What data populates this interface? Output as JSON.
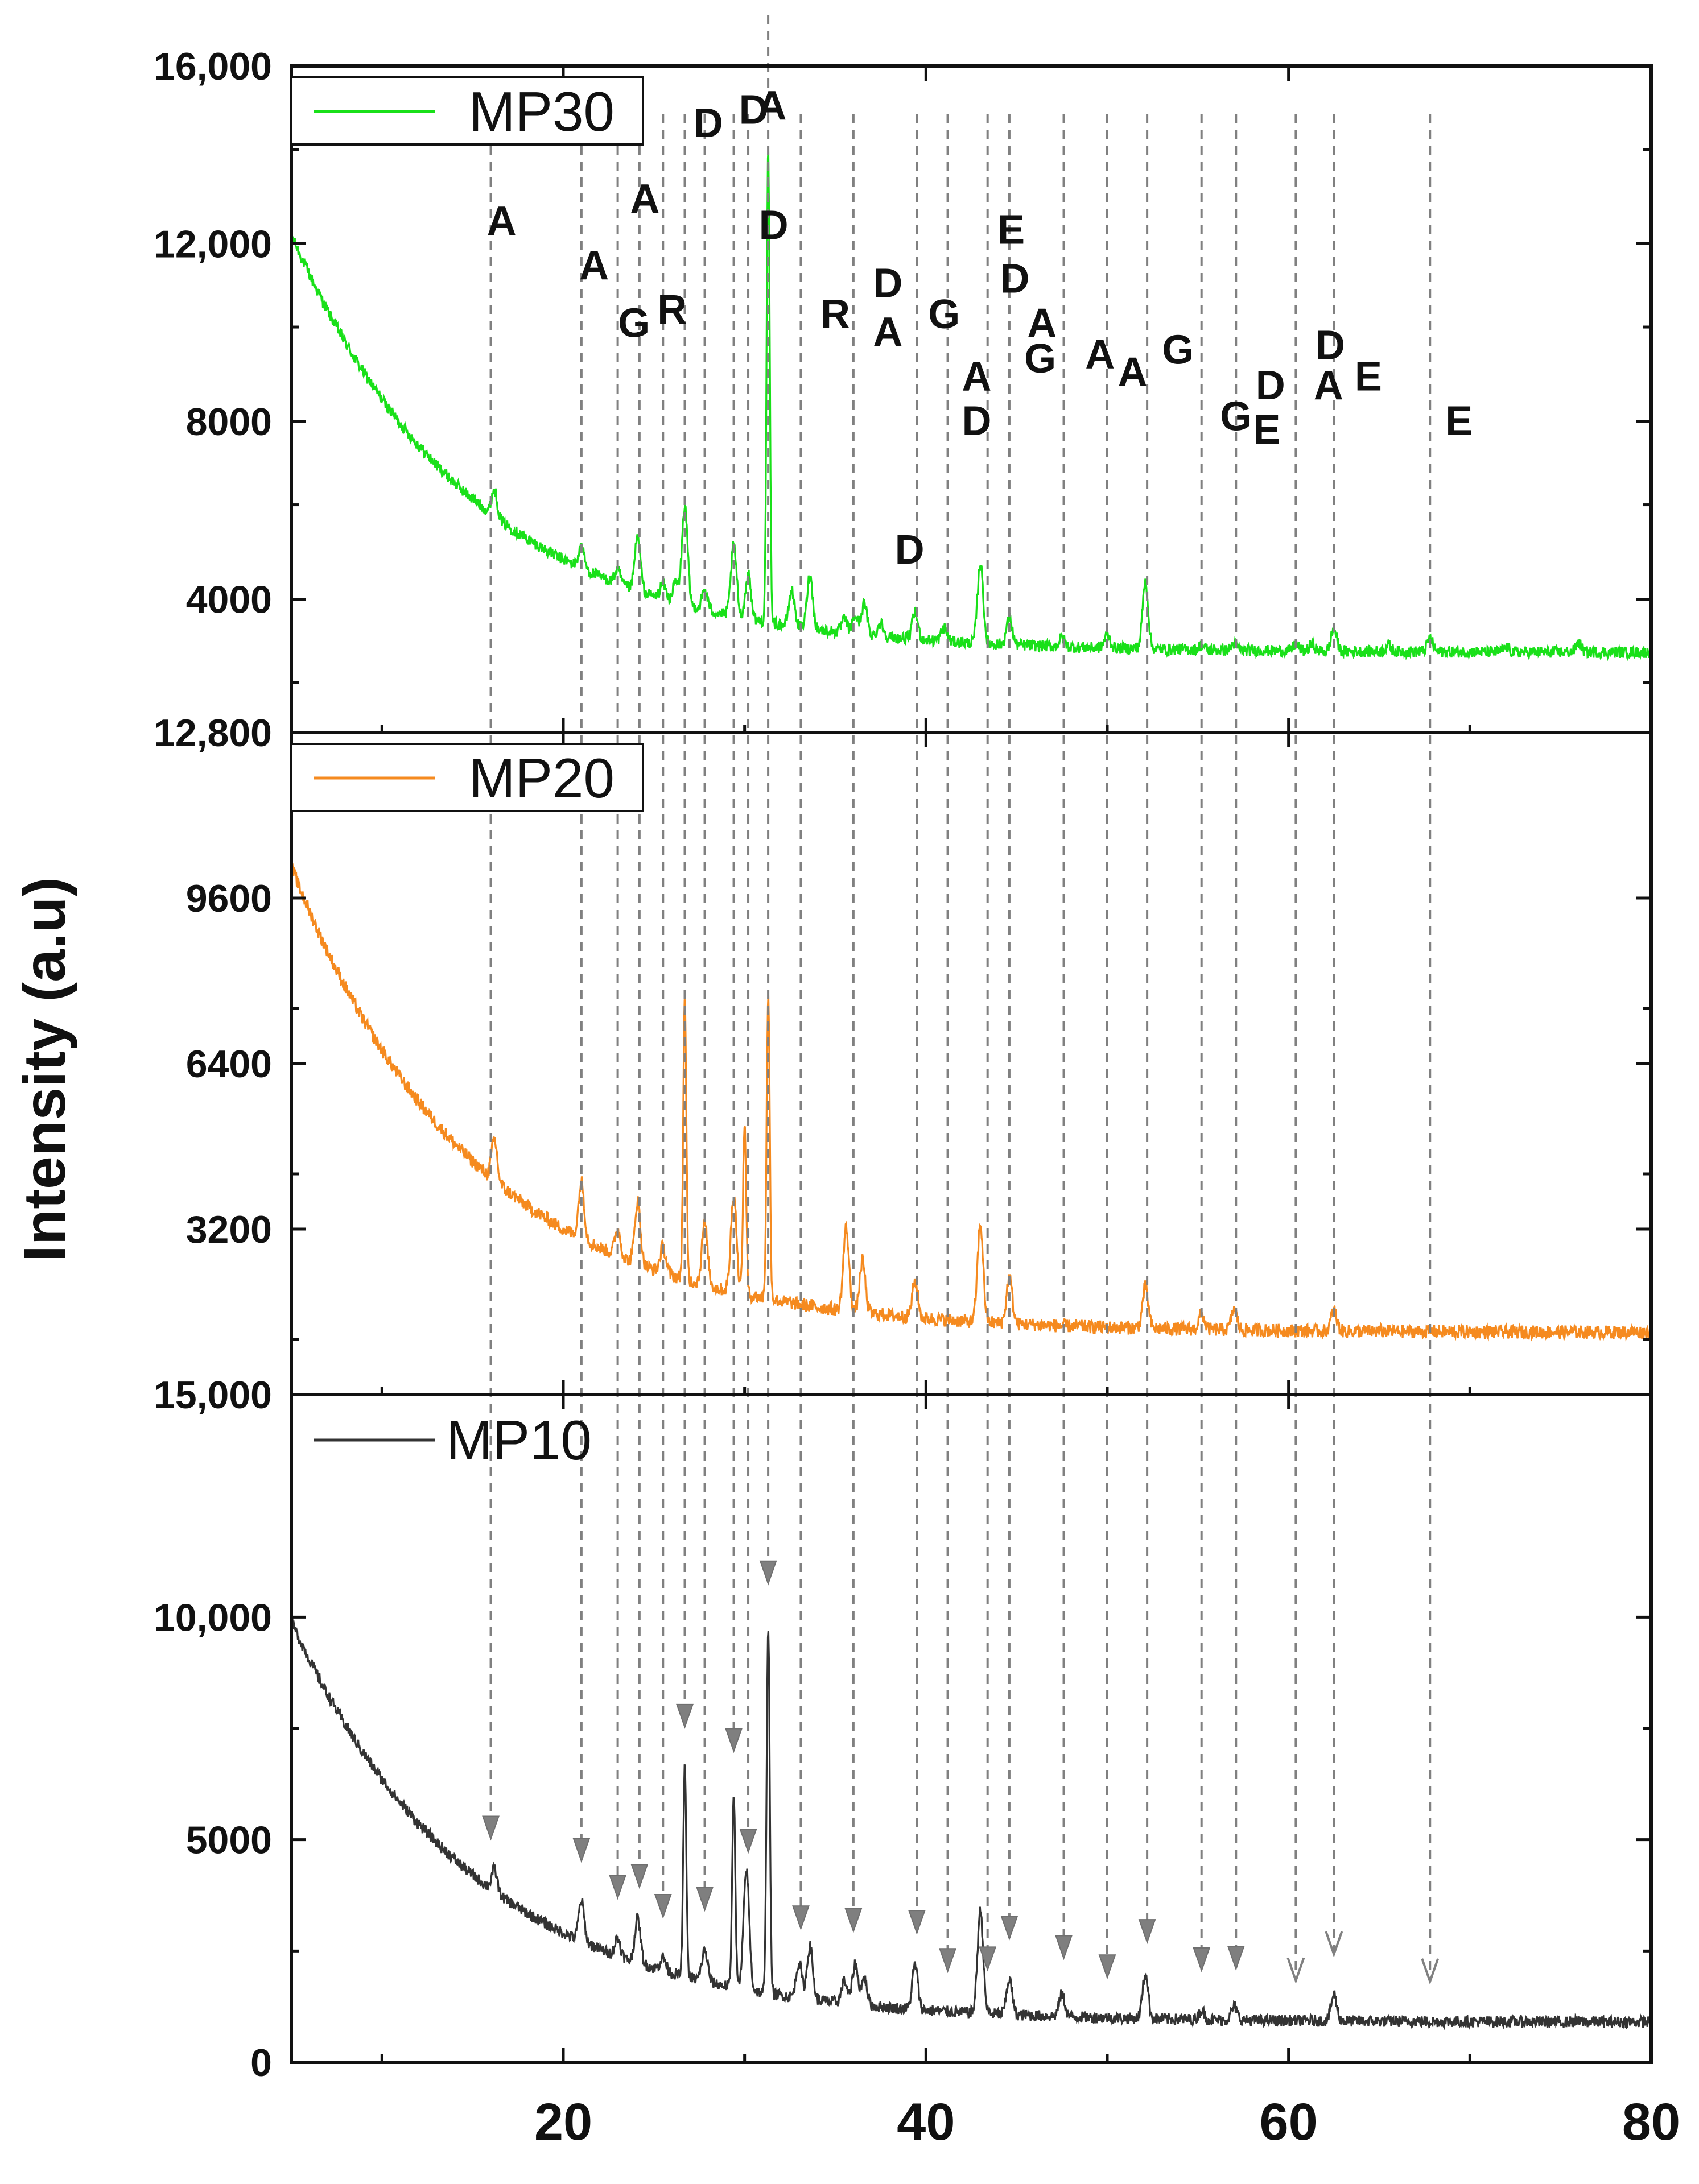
{
  "chart_data": {
    "type": "line",
    "title": "",
    "xlabel": "",
    "ylabel": "Intensity (a.u)",
    "xlim": [
      5,
      80
    ],
    "x_ticks": [
      "20",
      "40",
      "60",
      "80"
    ],
    "panels": [
      {
        "id": "top",
        "series_name": "MP30",
        "color": "#19e019",
        "ylim": [
          1000,
          16000
        ],
        "y_ticks": [
          {
            "value": 16000,
            "label": "16,000"
          },
          {
            "value": 12000,
            "label": "12,000"
          },
          {
            "value": 8000,
            "label": "8000"
          },
          {
            "value": 4000,
            "label": "4000"
          }
        ],
        "bottom_label": "12,800",
        "baseline": {
          "a": 2800,
          "b": 9400,
          "tau": 10
        },
        "peaks": [
          [
            16.2,
            600
          ],
          [
            21,
            500
          ],
          [
            23,
            300
          ],
          [
            24.1,
            1200
          ],
          [
            25.5,
            350
          ],
          [
            26.2,
            450
          ],
          [
            26.7,
            2200
          ],
          [
            27.8,
            450
          ],
          [
            29.4,
            1600
          ],
          [
            30.2,
            1000
          ],
          [
            31.3,
            10600
          ],
          [
            32.6,
            800
          ],
          [
            33.6,
            1200
          ],
          [
            35.5,
            300
          ],
          [
            36.1,
            400
          ],
          [
            36.6,
            700
          ],
          [
            37.5,
            300
          ],
          [
            39.4,
            600
          ],
          [
            41,
            300
          ],
          [
            43,
            1800
          ],
          [
            44.6,
            600
          ],
          [
            47.5,
            200
          ],
          [
            50,
            300
          ],
          [
            52.1,
            1500
          ],
          [
            55.2,
            100
          ],
          [
            57,
            150
          ],
          [
            60.4,
            150
          ],
          [
            61.3,
            150
          ],
          [
            62.5,
            500
          ],
          [
            65.5,
            150
          ],
          [
            67.8,
            300
          ],
          [
            72,
            100
          ],
          [
            76,
            200
          ]
        ],
        "labels": [
          {
            "text": "A",
            "x": 16.6,
            "y": 12200
          },
          {
            "text": "A",
            "x": 21.7,
            "y": 11200
          },
          {
            "text": "G",
            "x": 23.9,
            "y": 9900
          },
          {
            "text": "A",
            "x": 24.5,
            "y": 12700
          },
          {
            "text": "R",
            "x": 26.0,
            "y": 10200
          },
          {
            "text": "D",
            "x": 28.0,
            "y": 14400
          },
          {
            "text": "D",
            "x": 30.5,
            "y": 14700
          },
          {
            "text": "A",
            "x": 31.5,
            "y": 14800
          },
          {
            "text": "D",
            "x": 31.6,
            "y": 12100
          },
          {
            "text": "R",
            "x": 35.0,
            "y": 10100
          },
          {
            "text": "D",
            "x": 37.9,
            "y": 10800
          },
          {
            "text": "A",
            "x": 37.9,
            "y": 9700
          },
          {
            "text": "G",
            "x": 41.0,
            "y": 10100
          },
          {
            "text": "A",
            "x": 42.8,
            "y": 8700
          },
          {
            "text": "D",
            "x": 42.8,
            "y": 7700
          },
          {
            "text": "E",
            "x": 44.7,
            "y": 12000
          },
          {
            "text": "D",
            "x": 44.9,
            "y": 10900
          },
          {
            "text": "A",
            "x": 46.4,
            "y": 9900
          },
          {
            "text": "G",
            "x": 46.3,
            "y": 9100
          },
          {
            "text": "D",
            "x": 39.1,
            "y": 4800
          },
          {
            "text": "A",
            "x": 49.6,
            "y": 9200
          },
          {
            "text": "A",
            "x": 51.4,
            "y": 8800
          },
          {
            "text": "G",
            "x": 53.9,
            "y": 9300
          },
          {
            "text": "G",
            "x": 57.1,
            "y": 7800
          },
          {
            "text": "D",
            "x": 59.0,
            "y": 8500
          },
          {
            "text": "E",
            "x": 58.8,
            "y": 7500
          },
          {
            "text": "D",
            "x": 62.3,
            "y": 9400
          },
          {
            "text": "A",
            "x": 62.2,
            "y": 8500
          },
          {
            "text": "E",
            "x": 64.4,
            "y": 8700
          },
          {
            "text": "E",
            "x": 69.4,
            "y": 7700
          }
        ]
      },
      {
        "id": "middle",
        "series_name": "MP20",
        "color": "#f58a1f",
        "ylim": [
          0,
          12800
        ],
        "y_ticks": [
          {
            "value": 9600,
            "label": "9600"
          },
          {
            "value": 6400,
            "label": "6400"
          },
          {
            "value": 3200,
            "label": "3200"
          }
        ],
        "bottom_label": "15,000",
        "baseline": {
          "a": 1200,
          "b": 9000,
          "tau": 10
        },
        "peaks": [
          [
            16.2,
            800
          ],
          [
            21,
            1100
          ],
          [
            23,
            500
          ],
          [
            24.1,
            1200
          ],
          [
            25.5,
            500
          ],
          [
            26.7,
            5400
          ],
          [
            27.8,
            1200
          ],
          [
            29.4,
            1900
          ],
          [
            30,
            3300
          ],
          [
            31.3,
            5900
          ],
          [
            35.6,
            1600
          ],
          [
            36.5,
            1000
          ],
          [
            39.4,
            700
          ],
          [
            43,
            1900
          ],
          [
            44.6,
            900
          ],
          [
            52.1,
            800
          ],
          [
            55.2,
            300
          ],
          [
            57,
            400
          ],
          [
            62.5,
            400
          ]
        ],
        "labels": []
      },
      {
        "id": "bottom",
        "series_name": "MP10",
        "color": "#333333",
        "ylim": [
          0,
          15000
        ],
        "y_ticks": [
          {
            "value": 10000,
            "label": "10,000"
          },
          {
            "value": 5000,
            "label": "5000"
          },
          {
            "value": 0,
            "label": "0"
          }
        ],
        "baseline": {
          "a": 900,
          "b": 9000,
          "tau": 10
        },
        "peaks": [
          [
            16.2,
            500
          ],
          [
            21,
            900
          ],
          [
            23,
            400
          ],
          [
            24.1,
            1000
          ],
          [
            25.5,
            300
          ],
          [
            26.7,
            4700
          ],
          [
            27.8,
            700
          ],
          [
            29.4,
            4400
          ],
          [
            30.1,
            2700
          ],
          [
            31.3,
            8300
          ],
          [
            33,
            800
          ],
          [
            33.6,
            1200
          ],
          [
            35.5,
            500
          ],
          [
            36.1,
            900
          ],
          [
            36.6,
            600
          ],
          [
            39.4,
            1000
          ],
          [
            43,
            2300
          ],
          [
            44.6,
            800
          ],
          [
            47.5,
            500
          ],
          [
            52.1,
            1000
          ],
          [
            55.2,
            200
          ],
          [
            57,
            300
          ],
          [
            62.5,
            600
          ]
        ],
        "labels": []
      }
    ],
    "reference_lines_x": [
      16,
      21,
      23,
      24.2,
      25.5,
      26.7,
      27.8,
      29.4,
      30.2,
      31.3,
      33.1,
      36,
      39.5,
      41.2,
      43.4,
      44.6,
      47.6,
      50,
      52.2,
      55.2,
      57.1,
      60.4,
      62.5,
      67.8
    ],
    "markers": [
      {
        "x": 16,
        "style": "filled"
      },
      {
        "x": 21,
        "style": "filled"
      },
      {
        "x": 23,
        "style": "filled"
      },
      {
        "x": 24.2,
        "style": "filled"
      },
      {
        "x": 25.5,
        "style": "filled"
      },
      {
        "x": 26.7,
        "style": "filled"
      },
      {
        "x": 27.8,
        "style": "filled"
      },
      {
        "x": 29.4,
        "style": "filled"
      },
      {
        "x": 30.2,
        "style": "filled"
      },
      {
        "x": 31.3,
        "style": "filled"
      },
      {
        "x": 33.1,
        "style": "filled"
      },
      {
        "x": 36,
        "style": "filled"
      },
      {
        "x": 39.5,
        "style": "filled"
      },
      {
        "x": 41.2,
        "style": "filled"
      },
      {
        "x": 43.4,
        "style": "filled"
      },
      {
        "x": 44.6,
        "style": "filled"
      },
      {
        "x": 47.6,
        "style": "filled"
      },
      {
        "x": 50,
        "style": "filled"
      },
      {
        "x": 52.2,
        "style": "filled"
      },
      {
        "x": 55.2,
        "style": "filled"
      },
      {
        "x": 57.1,
        "style": "filled"
      },
      {
        "x": 60.4,
        "style": "open"
      },
      {
        "x": 62.5,
        "style": "open"
      },
      {
        "x": 67.8,
        "style": "open"
      }
    ]
  }
}
